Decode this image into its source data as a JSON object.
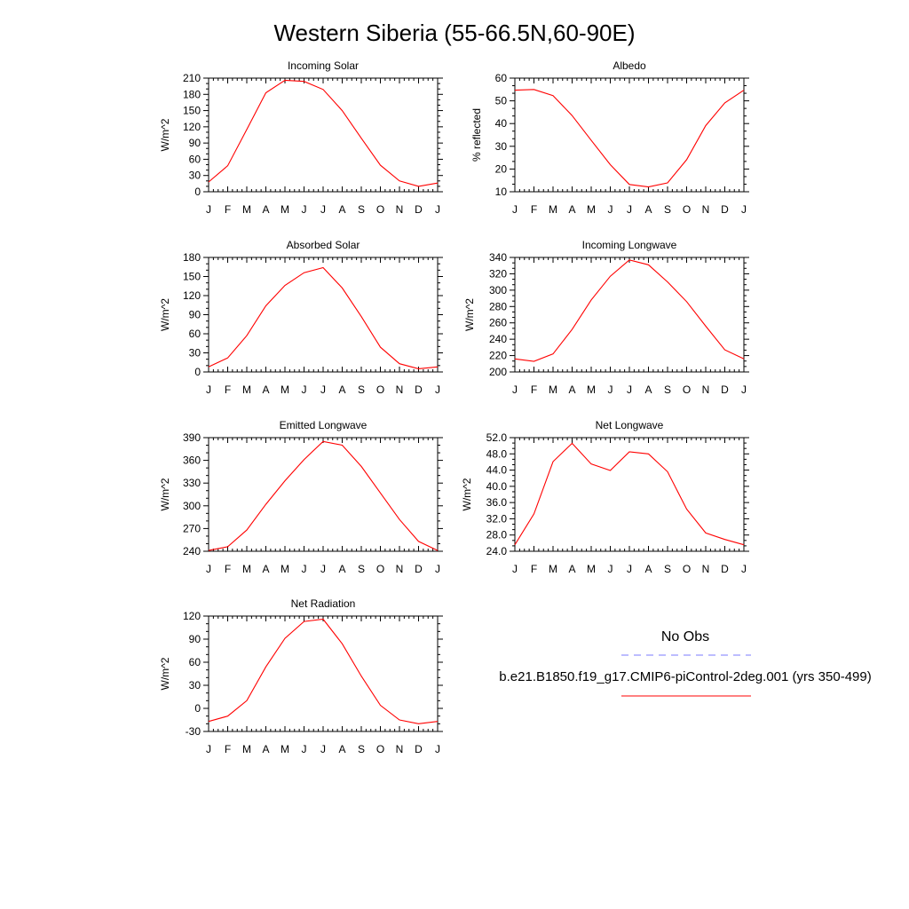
{
  "title": "Western Siberia (55-66.5N,60-90E)",
  "months": [
    "J",
    "F",
    "M",
    "A",
    "M",
    "J",
    "J",
    "A",
    "S",
    "O",
    "N",
    "D",
    "J"
  ],
  "legend": {
    "obs_label": "No Obs",
    "obs_color": "#7b7bff",
    "model_label": "b.e21.B1850.f19_g17.CMIP6-piControl-2deg.001 (yrs 350-499)",
    "model_color": "#ff0000"
  },
  "chart_data": [
    {
      "type": "line",
      "title": "Incoming Solar",
      "ylabel": "W/m^2",
      "ylim": [
        0,
        210
      ],
      "yticks": [
        "0",
        "30",
        "60",
        "90",
        "120",
        "150",
        "180",
        "210"
      ],
      "series": [
        {
          "values": [
            18,
            48,
            115,
            183,
            206,
            204,
            189,
            150,
            99,
            49,
            20,
            10,
            16
          ]
        }
      ]
    },
    {
      "type": "line",
      "title": "Albedo",
      "ylabel": "% reflected",
      "ylim": [
        10,
        60
      ],
      "yticks": [
        "10",
        "20",
        "30",
        "40",
        "50",
        "60"
      ],
      "series": [
        {
          "values": [
            54.7,
            55,
            52.3,
            43.5,
            32.6,
            21.9,
            13.2,
            12.1,
            13.9,
            24.1,
            39.1,
            49.1,
            54.7
          ]
        }
      ]
    },
    {
      "type": "line",
      "title": "Absorbed Solar",
      "ylabel": "W/m^2",
      "ylim": [
        0,
        180
      ],
      "yticks": [
        "0",
        "30",
        "60",
        "90",
        "120",
        "150",
        "180"
      ],
      "series": [
        {
          "values": [
            8,
            22,
            57,
            104,
            136,
            156,
            164,
            132,
            87,
            39,
            13,
            5,
            8
          ]
        }
      ]
    },
    {
      "type": "line",
      "title": "Incoming Longwave",
      "ylabel": "W/m^2",
      "ylim": [
        200,
        340
      ],
      "yticks": [
        "200",
        "220",
        "240",
        "260",
        "280",
        "300",
        "320",
        "340"
      ],
      "series": [
        {
          "values": [
            216,
            213,
            222,
            252,
            288,
            317,
            337,
            331,
            310,
            286,
            256,
            227,
            216
          ]
        }
      ]
    },
    {
      "type": "line",
      "title": "Emitted Longwave",
      "ylabel": "W/m^2",
      "ylim": [
        240,
        390
      ],
      "yticks": [
        "240",
        "270",
        "300",
        "330",
        "360",
        "390"
      ],
      "series": [
        {
          "values": [
            241,
            246,
            268,
            302,
            333,
            361,
            385,
            380,
            352,
            317,
            282,
            253,
            241
          ]
        }
      ]
    },
    {
      "type": "line",
      "title": "Net Longwave",
      "ylabel": "W/m^2",
      "ylim": [
        24,
        52
      ],
      "yticks": [
        "24.0",
        "28.0",
        "32.0",
        "36.0",
        "40.0",
        "44.0",
        "48.0",
        "52.0"
      ],
      "series": [
        {
          "values": [
            25.6,
            33.2,
            46.1,
            50.6,
            45.5,
            43.9,
            48.5,
            48,
            43.6,
            34.4,
            28.5,
            26.9,
            25.6
          ]
        }
      ]
    },
    {
      "type": "line",
      "title": "Net Radiation",
      "ylabel": "W/m^2",
      "ylim": [
        -30,
        120
      ],
      "yticks": [
        "-30",
        "0",
        "30",
        "60",
        "90",
        "120"
      ],
      "series": [
        {
          "values": [
            -17,
            -10,
            10,
            54,
            91,
            113,
            116,
            84,
            42,
            4,
            -15,
            -20,
            -17
          ]
        }
      ]
    }
  ]
}
